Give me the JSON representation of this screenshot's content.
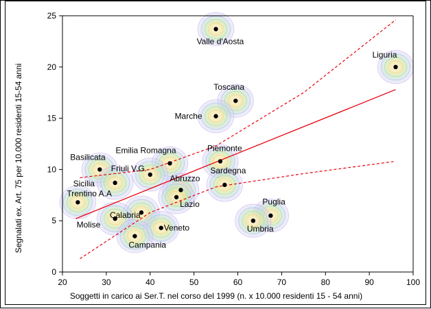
{
  "chart_data": {
    "type": "scatter",
    "title": "",
    "xlabel": "Soggetti in carico ai Ser.T. nel corso del 1999 (n. x 10.000 residenti  15 - 54 anni)",
    "ylabel": "Segnalati ex. Art. 75 per 10.000 residenti 15-54 anni",
    "xlim": [
      20,
      100
    ],
    "ylim": [
      0,
      25
    ],
    "xticks": [
      "20",
      "30",
      "40",
      "50",
      "60",
      "70",
      "80",
      "90",
      "100"
    ],
    "yticks": [
      "0",
      "5",
      "10",
      "15",
      "20",
      "25"
    ],
    "grid": false,
    "points": [
      {
        "label": "Valle d'Aosta",
        "x": 55,
        "y": 23.7
      },
      {
        "label": "Liguria",
        "x": 96,
        "y": 20
      },
      {
        "label": "Toscana",
        "x": 59.5,
        "y": 16.7
      },
      {
        "label": "Marche",
        "x": 55,
        "y": 15.2
      },
      {
        "label": "Basilicata",
        "x": 28.5,
        "y": 10
      },
      {
        "label": "Emilia Romagna",
        "x": 44.5,
        "y": 10.6
      },
      {
        "label": "Piemonte",
        "x": 56,
        "y": 10.8
      },
      {
        "label": "Friuli V.G.",
        "x": 40,
        "y": 9.5
      },
      {
        "label": "Sicilia",
        "x": 32,
        "y": 8.7
      },
      {
        "label": "Sardegna",
        "x": 57,
        "y": 8.5
      },
      {
        "label": "Abruzzo",
        "x": 47,
        "y": 8
      },
      {
        "label": "Trentino A.A",
        "x": 23.5,
        "y": 6.8
      },
      {
        "label": "Calabria",
        "x": 38,
        "y": 5.8
      },
      {
        "label": "Lazio",
        "x": 46,
        "y": 7.3
      },
      {
        "label": "Puglia",
        "x": 67.5,
        "y": 5.5
      },
      {
        "label": "Umbria",
        "x": 63.5,
        "y": 5
      },
      {
        "label": "Molise",
        "x": 32,
        "y": 5.2
      },
      {
        "label": "Veneto",
        "x": 42.5,
        "y": 4.3
      },
      {
        "label": "Campania",
        "x": 36.5,
        "y": 3.5
      }
    ],
    "regression": {
      "fit": [
        {
          "x": 23,
          "y": 5.2
        },
        {
          "x": 96,
          "y": 17.8
        }
      ],
      "upper": [
        {
          "x": 24,
          "y": 9.2
        },
        {
          "x": 40,
          "y": 10
        },
        {
          "x": 55,
          "y": 12.3
        },
        {
          "x": 75,
          "y": 17.5
        },
        {
          "x": 96,
          "y": 24.6
        }
      ],
      "lower": [
        {
          "x": 24,
          "y": 1.3
        },
        {
          "x": 40,
          "y": 5.8
        },
        {
          "x": 55,
          "y": 8.3
        },
        {
          "x": 75,
          "y": 9.6
        },
        {
          "x": 96,
          "y": 10.8
        }
      ]
    },
    "colors": {
      "fit": "#e8000b",
      "band": "#e8000b",
      "point": "#000000",
      "axis": "#000000"
    }
  }
}
